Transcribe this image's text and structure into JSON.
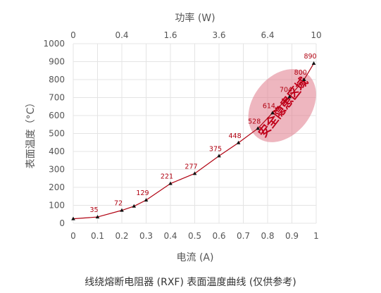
{
  "chart_data": {
    "type": "line",
    "caption": "线绕熔断电阻器 (RXF) 表面温度曲线 (仅供参考)",
    "xlabel": "电流 (A)",
    "ylabel": "表面温度（°C）",
    "top_xlabel": "功率 (W)",
    "xlim": [
      0,
      1
    ],
    "ylim": [
      0,
      1000
    ],
    "x_ticks": [
      "0",
      "0.1",
      "0.2",
      "0.3",
      "0.4",
      "0.5",
      "0.6",
      "0.7",
      "0.8",
      "0.9",
      "1"
    ],
    "y_ticks": [
      "0",
      "100",
      "200",
      "300",
      "400",
      "500",
      "600",
      "700",
      "800",
      "900",
      "1000"
    ],
    "top_ticks": [
      {
        "value": 0,
        "label": "0"
      },
      {
        "value": 0.2,
        "label": "0.4"
      },
      {
        "value": 0.4,
        "label": "1.6"
      },
      {
        "value": 0.6,
        "label": "3.6"
      },
      {
        "value": 0.8,
        "label": "6.4"
      },
      {
        "value": 1.0,
        "label": "10"
      }
    ],
    "grid": true,
    "series": [
      {
        "color": "#b00010",
        "points": [
          {
            "x": 0,
            "y": 25
          },
          {
            "x": 0.1,
            "y": 35,
            "label": "35"
          },
          {
            "x": 0.2,
            "y": 72,
            "label": "72"
          },
          {
            "x": 0.25,
            "y": 95
          },
          {
            "x": 0.3,
            "y": 129,
            "label": "129"
          },
          {
            "x": 0.4,
            "y": 221,
            "label": "221"
          },
          {
            "x": 0.5,
            "y": 277,
            "label": "277"
          },
          {
            "x": 0.6,
            "y": 375,
            "label": "375"
          },
          {
            "x": 0.68,
            "y": 448,
            "label": "448"
          },
          {
            "x": 0.76,
            "y": 528,
            "label": "528"
          },
          {
            "x": 0.82,
            "y": 614,
            "label": "614"
          },
          {
            "x": 0.89,
            "y": 704,
            "label": "704"
          },
          {
            "x": 0.95,
            "y": 800,
            "label": "800"
          },
          {
            "x": 0.99,
            "y": 890,
            "label": "890"
          }
        ]
      }
    ],
    "zone": {
      "label": "安全隐患区域",
      "fill": "#e07a8a",
      "cx": 0.86,
      "cy": 655,
      "rx": 0.12,
      "ry": 225
    }
  }
}
